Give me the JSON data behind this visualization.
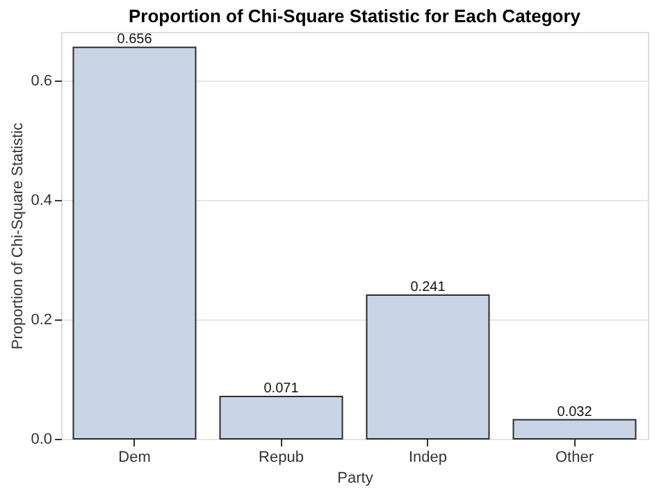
{
  "chart_data": {
    "type": "bar",
    "title": "Proportion of Chi-Square Statistic for Each Category",
    "xlabel": "Party",
    "ylabel": "Proportion of Chi-Square Statistic",
    "categories": [
      "Dem",
      "Repub",
      "Indep",
      "Other"
    ],
    "values": [
      0.656,
      0.071,
      0.241,
      0.032
    ],
    "color": "#c9d5e6",
    "ylim": [
      0,
      0.682
    ],
    "yticks": [
      {
        "value": 0,
        "label": "0.0"
      },
      {
        "value": 0.2,
        "label": "0.2"
      },
      {
        "value": 0.4,
        "label": "0.4"
      },
      {
        "value": 0.6,
        "label": "0.6"
      }
    ],
    "grid": "y",
    "data_labels": true
  }
}
